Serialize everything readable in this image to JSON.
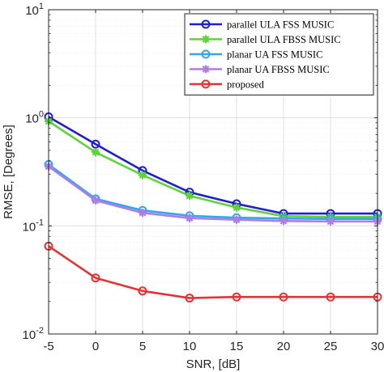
{
  "chart_data": {
    "type": "line",
    "title": "",
    "xlabel": "SNR, [dB]",
    "ylabel": "RMSE, [Degrees]",
    "xlim": [
      -5,
      30
    ],
    "ylim": [
      0.01,
      10
    ],
    "yscale": "log",
    "grid": true,
    "legend_position": "top-right",
    "x": [
      -5,
      0,
      5,
      10,
      15,
      20,
      25,
      30
    ],
    "x_tick_labels": [
      "-5",
      "0",
      "5",
      "10",
      "15",
      "20",
      "25",
      "30"
    ],
    "y_ticks": [
      {
        "value": 10,
        "base": "10",
        "exp": "1"
      },
      {
        "value": 1,
        "base": "10",
        "exp": "0"
      },
      {
        "value": 0.1,
        "base": "10",
        "exp": "-1"
      },
      {
        "value": 0.01,
        "base": "10",
        "exp": "-2"
      }
    ],
    "series": [
      {
        "name": "parallel ULA FSS MUSIC",
        "color": "#1f1fcf",
        "marker": "circle",
        "values": [
          1.02,
          0.57,
          0.325,
          0.205,
          0.16,
          0.13,
          0.13,
          0.13
        ]
      },
      {
        "name": "parallel ULA FBSS MUSIC",
        "color": "#5ed33a",
        "marker": "star",
        "values": [
          0.93,
          0.48,
          0.295,
          0.19,
          0.148,
          0.123,
          0.121,
          0.121
        ]
      },
      {
        "name": "planar UA FSS MUSIC",
        "color": "#33a7ee",
        "marker": "circle",
        "values": [
          0.37,
          0.178,
          0.139,
          0.124,
          0.119,
          0.117,
          0.116,
          0.116
        ]
      },
      {
        "name": "planar UA FBSS MUSIC",
        "color": "#b07ce6",
        "marker": "star",
        "values": [
          0.355,
          0.172,
          0.132,
          0.118,
          0.114,
          0.111,
          0.11,
          0.11
        ]
      },
      {
        "name": "proposed",
        "color": "#e03535",
        "marker": "circle",
        "values": [
          0.065,
          0.033,
          0.025,
          0.0215,
          0.022,
          0.022,
          0.022,
          0.022
        ]
      }
    ]
  }
}
